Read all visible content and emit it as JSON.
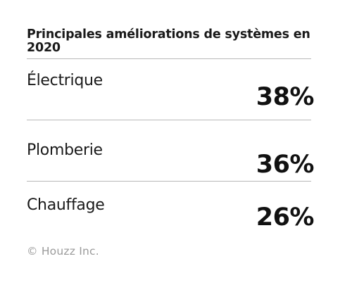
{
  "chart_data": {
    "type": "table",
    "title": "Principales améliorations de systèmes en 2020",
    "columns": [
      "",
      ""
    ],
    "rows": [
      {
        "label": "Électrique",
        "value": 38,
        "value_text": "38%"
      },
      {
        "label": "Plomberie",
        "value": 36,
        "value_text": "36%"
      },
      {
        "label": "Chauffage",
        "value": 26,
        "value_text": "26%"
      }
    ],
    "unit": "%"
  },
  "credit": "© Houzz Inc.",
  "colors": {
    "text": "#111111",
    "rule": "#b8b8b8",
    "credit": "#9a9a9a",
    "background": "#ffffff"
  }
}
